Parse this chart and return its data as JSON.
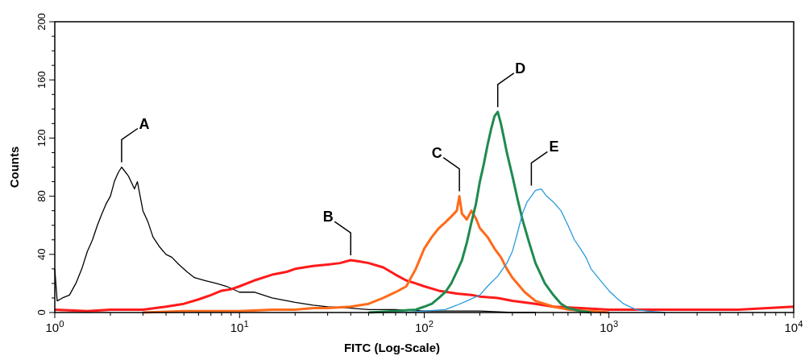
{
  "chart_data": {
    "type": "line",
    "xlabel": "FITC (Log-Scale)",
    "ylabel": "Counts",
    "log": "x",
    "grid": false,
    "xlim": [
      1,
      10000
    ],
    "ylim": [
      0,
      200
    ],
    "xticks": [
      {
        "value": 1,
        "label": "10$^{0}$"
      },
      {
        "value": 2,
        "label": null
      },
      {
        "value": 3,
        "label": null
      },
      {
        "value": 4,
        "label": null
      },
      {
        "value": 5,
        "label": null
      },
      {
        "value": 6,
        "label": null
      },
      {
        "value": 7,
        "label": null
      },
      {
        "value": 8,
        "label": null
      },
      {
        "value": 9,
        "label": null
      },
      {
        "value": 10,
        "label": "10$^{1}$"
      },
      {
        "value": 20,
        "label": null
      },
      {
        "value": 30,
        "label": null
      },
      {
        "value": 40,
        "label": null
      },
      {
        "value": 50,
        "label": null
      },
      {
        "value": 60,
        "label": null
      },
      {
        "value": 70,
        "label": null
      },
      {
        "value": 80,
        "label": null
      },
      {
        "value": 90,
        "label": null
      },
      {
        "value": 100,
        "label": "10$^{2}$"
      },
      {
        "value": 200,
        "label": null
      },
      {
        "value": 300,
        "label": null
      },
      {
        "value": 400,
        "label": null
      },
      {
        "value": 500,
        "label": null
      },
      {
        "value": 600,
        "label": null
      },
      {
        "value": 700,
        "label": null
      },
      {
        "value": 800,
        "label": null
      },
      {
        "value": 900,
        "label": null
      },
      {
        "value": 1000,
        "label": "10$^{3}$"
      },
      {
        "value": 2000,
        "label": null
      },
      {
        "value": 3000,
        "label": null
      },
      {
        "value": 4000,
        "label": null
      },
      {
        "value": 5000,
        "label": null
      },
      {
        "value": 6000,
        "label": null
      },
      {
        "value": 7000,
        "label": null
      },
      {
        "value": 8000,
        "label": null
      },
      {
        "value": 9000,
        "label": null
      },
      {
        "value": 10000,
        "label": "10$^{4}$"
      }
    ],
    "yticks": [
      0,
      {
        "value": 10,
        "label": null
      },
      {
        "value": 20,
        "label": null
      },
      {
        "value": 30,
        "label": null
      },
      40,
      {
        "value": 50,
        "label": null
      },
      {
        "value": 60,
        "label": null
      },
      {
        "value": 70,
        "label": null
      },
      80,
      {
        "value": 90,
        "label": null
      },
      {
        "value": 100,
        "label": null
      },
      {
        "value": 110,
        "label": null
      },
      120,
      {
        "value": 130,
        "label": null
      },
      {
        "value": 140,
        "label": null
      },
      {
        "value": 150,
        "label": null
      },
      160,
      {
        "value": 170,
        "label": null
      },
      {
        "value": 180,
        "label": null
      },
      {
        "value": 190,
        "label": null
      },
      200
    ],
    "series": [
      {
        "color": "#000000",
        "x": [
          1,
          1.03,
          1.1,
          1.2,
          1.3,
          1.4,
          1.5,
          1.6,
          1.7,
          1.8,
          1.9,
          2.0,
          2.1,
          2.2,
          2.3,
          2.5,
          2.7,
          2.8,
          3.0,
          3.2,
          3.4,
          3.7,
          4.0,
          4.3,
          4.7,
          5.2,
          5.7,
          6.5,
          7.5,
          8.5,
          10,
          12,
          15,
          20,
          25,
          30,
          40,
          50,
          70,
          100,
          150,
          200,
          300,
          400
        ],
        "values": [
          30,
          8,
          10,
          12,
          20,
          30,
          42,
          50,
          60,
          68,
          75,
          80,
          90,
          96,
          100,
          94,
          85,
          90,
          70,
          62,
          52,
          45,
          40,
          38,
          33,
          28,
          24,
          22,
          20,
          18,
          14,
          14,
          10,
          7,
          5,
          4,
          3,
          2,
          2,
          1,
          1,
          1,
          0,
          0
        ]
      },
      {
        "color": "#ff1a1a",
        "x": [
          1,
          1.5,
          2,
          3,
          4,
          5,
          6,
          7,
          8,
          9,
          10,
          12,
          15,
          18,
          20,
          25,
          30,
          35,
          40,
          45,
          50,
          60,
          70,
          80,
          90,
          100,
          120,
          150,
          180,
          200,
          250,
          300,
          400,
          500,
          700,
          1000,
          2000,
          5000,
          10000
        ],
        "values": [
          2,
          1,
          2,
          2,
          4,
          6,
          9,
          12,
          15,
          16,
          18,
          22,
          26,
          28,
          30,
          32,
          33,
          34,
          36,
          35,
          34,
          31,
          26,
          22,
          20,
          18,
          15,
          13,
          12,
          11,
          10,
          8,
          6,
          4,
          3,
          2,
          2,
          2,
          4
        ]
      },
      {
        "color": "#ff6a1a",
        "x": [
          3,
          5,
          10,
          15,
          20,
          25,
          30,
          40,
          50,
          60,
          70,
          80,
          90,
          100,
          110,
          120,
          130,
          140,
          150,
          155,
          160,
          170,
          180,
          190,
          200,
          220,
          240,
          260,
          280,
          300,
          350,
          400,
          500,
          600,
          800,
          1000
        ],
        "values": [
          0,
          1,
          1,
          2,
          2,
          3,
          3,
          4,
          6,
          10,
          14,
          18,
          30,
          44,
          52,
          58,
          62,
          66,
          70,
          80,
          68,
          64,
          70,
          65,
          58,
          52,
          44,
          38,
          30,
          24,
          14,
          8,
          4,
          2,
          1,
          0
        ]
      },
      {
        "color": "#1f8a50",
        "x": [
          50,
          70,
          90,
          100,
          110,
          120,
          130,
          140,
          150,
          160,
          170,
          180,
          190,
          200,
          210,
          220,
          230,
          240,
          250,
          260,
          270,
          280,
          300,
          320,
          340,
          370,
          400,
          450,
          500,
          550,
          600,
          700,
          800
        ],
        "values": [
          0,
          1,
          2,
          4,
          6,
          10,
          14,
          20,
          28,
          36,
          48,
          62,
          74,
          90,
          102,
          115,
          126,
          135,
          138,
          130,
          120,
          110,
          94,
          78,
          64,
          48,
          34,
          20,
          12,
          6,
          3,
          1,
          0
        ]
      },
      {
        "color": "#2a9ae0",
        "x": [
          80,
          100,
          130,
          150,
          170,
          200,
          220,
          250,
          280,
          300,
          320,
          340,
          360,
          380,
          400,
          430,
          460,
          500,
          550,
          600,
          650,
          700,
          750,
          800,
          900,
          1000,
          1100,
          1200,
          1400,
          1600,
          2000
        ],
        "values": [
          0,
          1,
          2,
          5,
          8,
          12,
          18,
          25,
          34,
          42,
          55,
          68,
          76,
          80,
          84,
          85,
          80,
          76,
          70,
          60,
          50,
          44,
          38,
          30,
          22,
          15,
          10,
          6,
          2,
          1,
          0
        ]
      }
    ],
    "annotations": [
      {
        "text": "A",
        "x": 2.3,
        "y": 100
      },
      {
        "text": "B",
        "x": 40,
        "y": 36
      },
      {
        "text": "C",
        "x": 155,
        "y": 80
      },
      {
        "text": "D",
        "x": 250,
        "y": 138
      },
      {
        "text": "E",
        "x": 380,
        "y": 84
      }
    ]
  }
}
